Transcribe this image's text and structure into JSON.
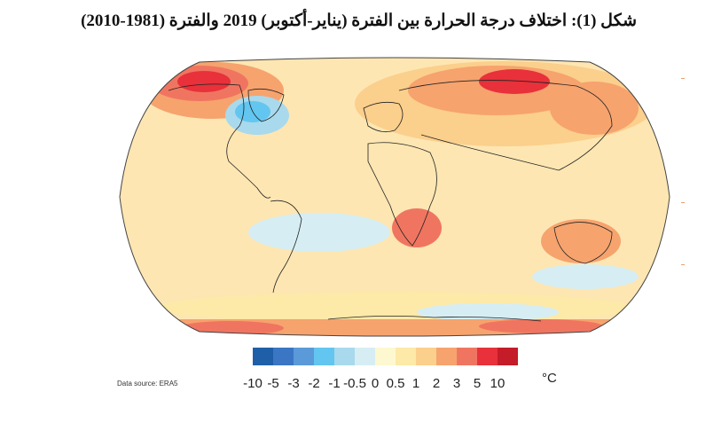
{
  "figure": {
    "title": "شكل (1): اختلاف درجة الحرارة بين الفترة (يناير-أكتوبر) 2019 والفترة (1981-2010)"
  },
  "map": {
    "projection": "robinson",
    "anomaly_regions": [
      {
        "region": "arctic-north-america",
        "level": "5"
      },
      {
        "region": "greenland-labrador",
        "level": "-2"
      },
      {
        "region": "siberia-arctic",
        "level": "5"
      },
      {
        "region": "europe",
        "level": "2"
      },
      {
        "region": "southern-africa",
        "level": "3"
      },
      {
        "region": "australia",
        "level": "2"
      },
      {
        "region": "southern-ocean",
        "level": "-1"
      },
      {
        "region": "antarctica-coast",
        "level": "3"
      }
    ]
  },
  "colorbar": {
    "unit": "°C",
    "tick_labels": [
      "-10",
      "-5",
      "-3",
      "-2",
      "-1",
      "-0.5",
      "0",
      "0.5",
      "1",
      "2",
      "3",
      "5",
      "10"
    ],
    "colors": [
      "#1f5fa8",
      "#3a76c4",
      "#5b9ad9",
      "#62c6f0",
      "#a9d9ec",
      "#d6eef3",
      "#fdf8cf",
      "#fde9a8",
      "#fbcf8c",
      "#f6a36e",
      "#f07560",
      "#e8313a",
      "#c41c28"
    ]
  },
  "data_source": "Data source: ERA5"
}
